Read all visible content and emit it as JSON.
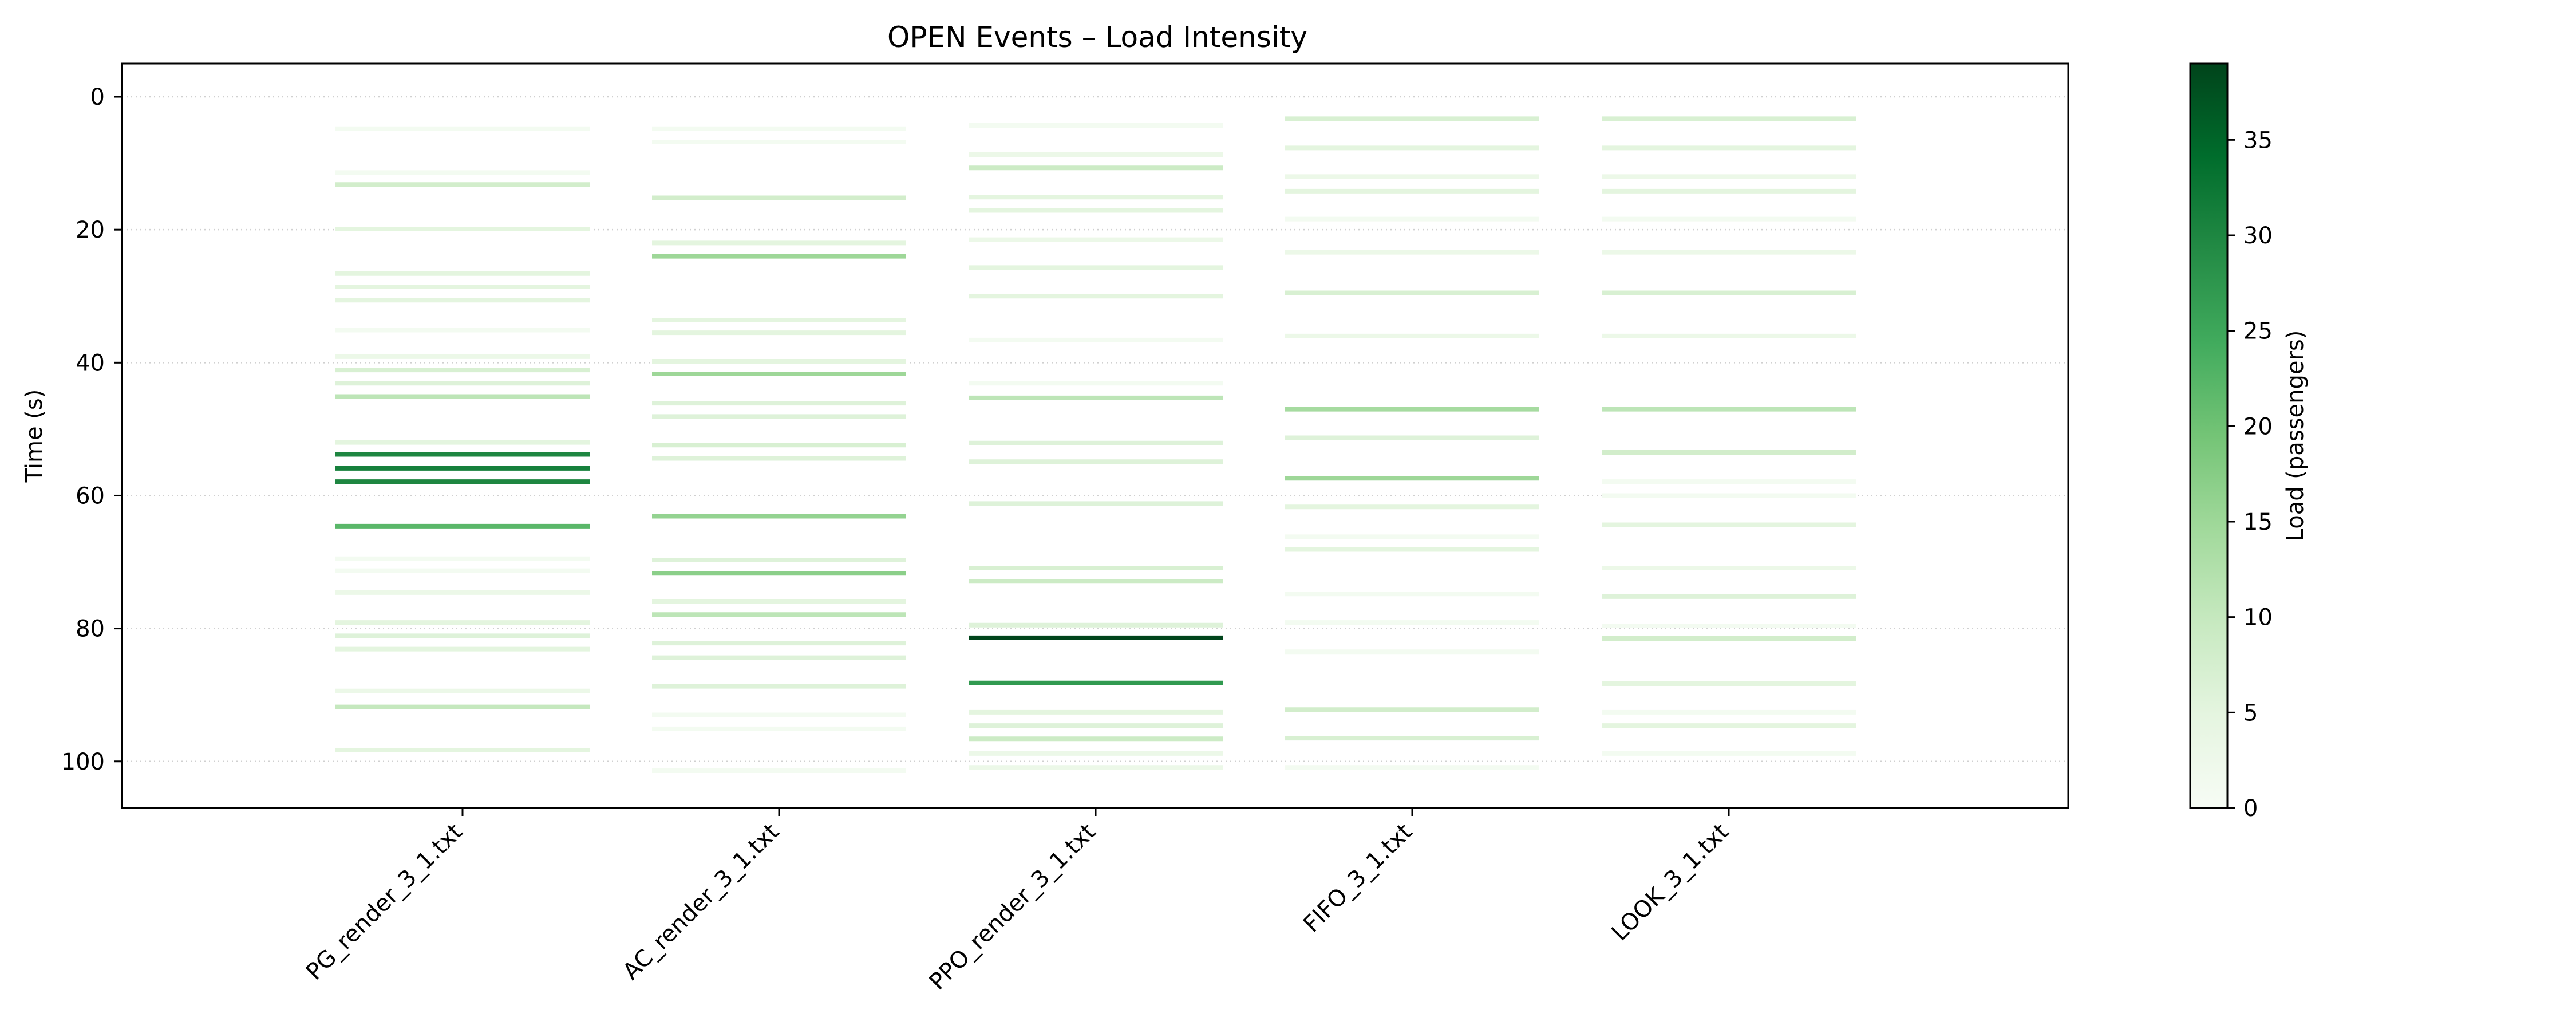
{
  "chart_data": {
    "type": "heatmap",
    "title": "OPEN Events – Load Intensity",
    "xlabel": "",
    "ylabel": "Time (s)",
    "ylim": [
      107,
      -5
    ],
    "y_inverted": true,
    "yticks": [
      0,
      20,
      40,
      60,
      80,
      100
    ],
    "grid": "horizontal dotted",
    "categories": [
      "PG_render_3_1.txt",
      "AC_render_3_1.txt",
      "PPO_render_3_1.txt",
      "FIFO_3_1.txt",
      "LOOK_3_1.txt"
    ],
    "colorbar": {
      "label": "Load (passengers)",
      "range": [
        0,
        39
      ],
      "ticks": [
        0,
        5,
        10,
        15,
        20,
        25,
        30,
        35
      ],
      "colormap": "Greens"
    },
    "series": [
      {
        "events": [
          {
            "t": 4.8,
            "load": 1
          },
          {
            "t": 11.4,
            "load": 1
          },
          {
            "t": 13.2,
            "load": 8
          },
          {
            "t": 19.9,
            "load": 5
          },
          {
            "t": 26.6,
            "load": 5
          },
          {
            "t": 28.6,
            "load": 5
          },
          {
            "t": 30.6,
            "load": 5
          },
          {
            "t": 35.1,
            "load": 1
          },
          {
            "t": 39.1,
            "load": 3
          },
          {
            "t": 41.1,
            "load": 7
          },
          {
            "t": 43.1,
            "load": 6
          },
          {
            "t": 45.1,
            "load": 11
          },
          {
            "t": 52.0,
            "load": 5
          },
          {
            "t": 53.8,
            "load": 30
          },
          {
            "t": 55.9,
            "load": 31
          },
          {
            "t": 57.9,
            "load": 30
          },
          {
            "t": 64.6,
            "load": 22
          },
          {
            "t": 69.5,
            "load": 1
          },
          {
            "t": 71.3,
            "load": 1
          },
          {
            "t": 74.6,
            "load": 3
          },
          {
            "t": 79.1,
            "load": 5
          },
          {
            "t": 81.1,
            "load": 6
          },
          {
            "t": 83.1,
            "load": 5
          },
          {
            "t": 89.4,
            "load": 3
          },
          {
            "t": 91.8,
            "load": 10
          },
          {
            "t": 98.3,
            "load": 5
          }
        ]
      },
      {
        "events": [
          {
            "t": 4.8,
            "load": 1
          },
          {
            "t": 6.8,
            "load": 1
          },
          {
            "t": 15.2,
            "load": 8
          },
          {
            "t": 22.0,
            "load": 5
          },
          {
            "t": 24.0,
            "load": 15
          },
          {
            "t": 33.6,
            "load": 5
          },
          {
            "t": 35.5,
            "load": 5
          },
          {
            "t": 39.8,
            "load": 5
          },
          {
            "t": 41.7,
            "load": 15
          },
          {
            "t": 46.1,
            "load": 6
          },
          {
            "t": 48.1,
            "load": 6
          },
          {
            "t": 52.4,
            "load": 7
          },
          {
            "t": 54.4,
            "load": 6
          },
          {
            "t": 63.1,
            "load": 16
          },
          {
            "t": 69.7,
            "load": 6
          },
          {
            "t": 71.7,
            "load": 17
          },
          {
            "t": 75.9,
            "load": 5
          },
          {
            "t": 77.9,
            "load": 11
          },
          {
            "t": 82.2,
            "load": 6
          },
          {
            "t": 84.4,
            "load": 6
          },
          {
            "t": 88.7,
            "load": 6
          },
          {
            "t": 93.0,
            "load": 1
          },
          {
            "t": 95.1,
            "load": 1
          },
          {
            "t": 101.4,
            "load": 1
          }
        ]
      },
      {
        "events": [
          {
            "t": 4.3,
            "load": 1
          },
          {
            "t": 8.7,
            "load": 3
          },
          {
            "t": 10.7,
            "load": 9
          },
          {
            "t": 15.1,
            "load": 5
          },
          {
            "t": 17.1,
            "load": 5
          },
          {
            "t": 21.5,
            "load": 3
          },
          {
            "t": 25.7,
            "load": 5
          },
          {
            "t": 30.0,
            "load": 5
          },
          {
            "t": 36.6,
            "load": 1
          },
          {
            "t": 43.1,
            "load": 1
          },
          {
            "t": 45.3,
            "load": 11
          },
          {
            "t": 52.1,
            "load": 6
          },
          {
            "t": 54.9,
            "load": 6
          },
          {
            "t": 61.2,
            "load": 6
          },
          {
            "t": 70.9,
            "load": 7
          },
          {
            "t": 72.9,
            "load": 9
          },
          {
            "t": 79.5,
            "load": 6
          },
          {
            "t": 81.4,
            "load": 39
          },
          {
            "t": 88.2,
            "load": 27
          },
          {
            "t": 92.6,
            "load": 5
          },
          {
            "t": 94.6,
            "load": 6
          },
          {
            "t": 96.6,
            "load": 9
          },
          {
            "t": 98.8,
            "load": 3
          },
          {
            "t": 100.9,
            "load": 3
          }
        ]
      },
      {
        "events": [
          {
            "t": 3.3,
            "load": 7
          },
          {
            "t": 7.7,
            "load": 5
          },
          {
            "t": 12.0,
            "load": 3
          },
          {
            "t": 14.2,
            "load": 5
          },
          {
            "t": 18.4,
            "load": 1
          },
          {
            "t": 23.4,
            "load": 3
          },
          {
            "t": 29.5,
            "load": 7
          },
          {
            "t": 36.0,
            "load": 3
          },
          {
            "t": 47.0,
            "load": 14
          },
          {
            "t": 51.3,
            "load": 6
          },
          {
            "t": 57.4,
            "load": 15
          },
          {
            "t": 61.7,
            "load": 5
          },
          {
            "t": 66.2,
            "load": 1
          },
          {
            "t": 68.1,
            "load": 5
          },
          {
            "t": 74.8,
            "load": 1
          },
          {
            "t": 79.1,
            "load": 1
          },
          {
            "t": 83.5,
            "load": 1
          },
          {
            "t": 92.2,
            "load": 8
          },
          {
            "t": 96.5,
            "load": 7
          },
          {
            "t": 100.9,
            "load": 1
          }
        ]
      },
      {
        "events": [
          {
            "t": 3.3,
            "load": 7
          },
          {
            "t": 7.7,
            "load": 5
          },
          {
            "t": 12.0,
            "load": 3
          },
          {
            "t": 14.2,
            "load": 5
          },
          {
            "t": 18.4,
            "load": 1
          },
          {
            "t": 23.4,
            "load": 3
          },
          {
            "t": 29.5,
            "load": 7
          },
          {
            "t": 36.0,
            "load": 3
          },
          {
            "t": 47.0,
            "load": 11
          },
          {
            "t": 53.5,
            "load": 8
          },
          {
            "t": 57.9,
            "load": 1
          },
          {
            "t": 60.0,
            "load": 1
          },
          {
            "t": 64.4,
            "load": 5
          },
          {
            "t": 70.9,
            "load": 3
          },
          {
            "t": 75.2,
            "load": 6
          },
          {
            "t": 79.6,
            "load": 1
          },
          {
            "t": 81.5,
            "load": 8
          },
          {
            "t": 88.3,
            "load": 5
          },
          {
            "t": 92.6,
            "load": 1
          },
          {
            "t": 94.6,
            "load": 5
          },
          {
            "t": 98.8,
            "load": 1
          }
        ]
      }
    ]
  }
}
